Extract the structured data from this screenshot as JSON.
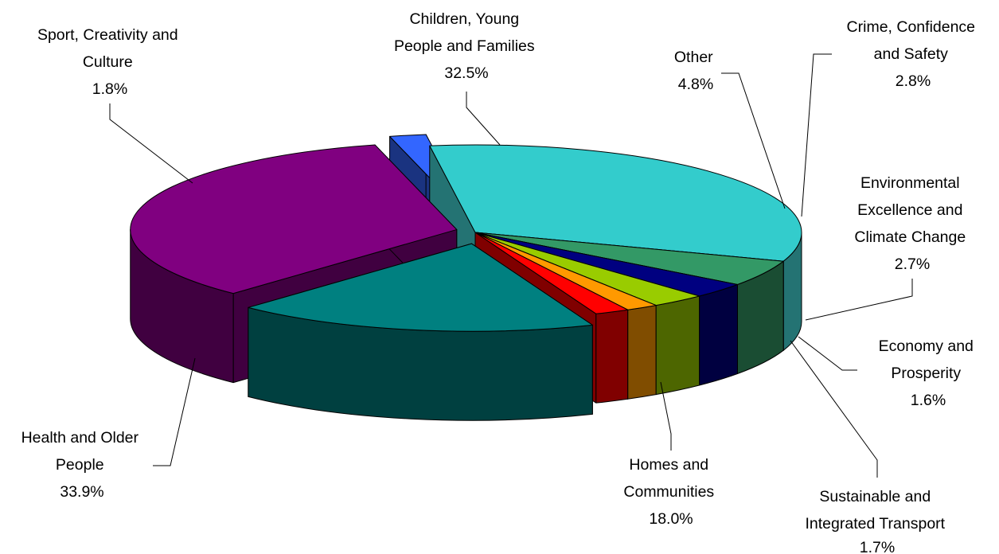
{
  "chart_data": {
    "type": "pie",
    "title": "",
    "slices": [
      {
        "label": [
          "Children, Young",
          "People and Families"
        ],
        "value": 32.5,
        "value_label": "32.5%",
        "color": "#33CCCC",
        "side_color": "#247373",
        "exploded": false
      },
      {
        "label": [
          "Other"
        ],
        "value": 4.8,
        "value_label": "4.8%",
        "color": "#339966",
        "side_color": "#1A4D33",
        "exploded": false
      },
      {
        "label": [
          "Crime, Confidence",
          "and Safety"
        ],
        "value": 2.8,
        "value_label": "2.8%",
        "color": "#000080",
        "side_color": "#000040",
        "exploded": false
      },
      {
        "label": [
          "Environmental",
          "Excellence and",
          "Climate Change"
        ],
        "value": 2.7,
        "value_label": "2.7%",
        "color": "#99CC00",
        "side_color": "#4D6600",
        "exploded": false
      },
      {
        "label": [
          "Economy and",
          "Prosperity"
        ],
        "value": 1.6,
        "value_label": "1.6%",
        "color": "#FF9900",
        "side_color": "#804D00",
        "exploded": false
      },
      {
        "label": [
          "Sustainable and",
          "Integrated Transport"
        ],
        "value": 1.7,
        "value_label": "1.7%",
        "color": "#FF0000",
        "side_color": "#800000",
        "exploded": false
      },
      {
        "label": [
          "Homes and",
          "Communities"
        ],
        "value": 18.0,
        "value_label": "18.0%",
        "color": "#008080",
        "side_color": "#004040",
        "exploded": true
      },
      {
        "label": [
          "Health and Older",
          "People"
        ],
        "value": 33.9,
        "value_label": "33.9%",
        "color": "#800080",
        "side_color": "#400040",
        "exploded": true
      },
      {
        "label": [
          "Sport, Creativity and",
          "Culture"
        ],
        "value": 1.8,
        "value_label": "1.8%",
        "color": "#3366FF",
        "side_color": "#1A3380",
        "exploded": true
      }
    ],
    "legend": "none",
    "three_d": true
  }
}
